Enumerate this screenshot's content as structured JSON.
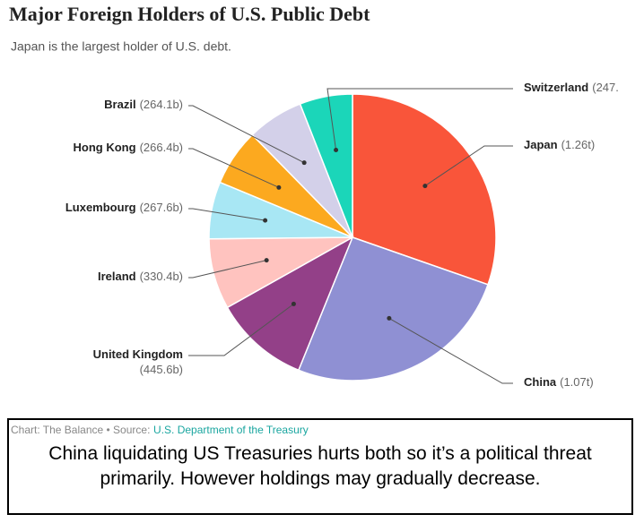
{
  "chart_data": {
    "type": "pie",
    "title": "Major Foreign Holders of U.S. Public Debt",
    "subtitle": "Japan is the largest holder of U.S. debt.",
    "categories": [
      "Japan",
      "China",
      "United Kingdom",
      "Ireland",
      "Luxembourg",
      "Hong Kong",
      "Brazil",
      "Switzerland"
    ],
    "values": [
      1260,
      1070,
      445.6,
      330.4,
      267.6,
      266.4,
      264.1,
      247
    ],
    "value_labels": [
      "(1.26t)",
      "(1.07t)",
      "(445.6b)",
      "(330.4b)",
      "(267.6b)",
      "(266.4b)",
      "(264.1b)",
      "(247."
    ],
    "colors": [
      "#f9553a",
      "#8f90d3",
      "#934088",
      "#ffc3bf",
      "#a8e7f4",
      "#fca91f",
      "#d3d0e9",
      "#1bd6b9"
    ]
  },
  "footer": {
    "credit": "Chart: The Balance • Source:",
    "source": "U.S. Department of the Treasury"
  },
  "caption": "China liquidating US Treasuries hurts both so it’s a political threat primarily. However holdings may gradually decrease."
}
